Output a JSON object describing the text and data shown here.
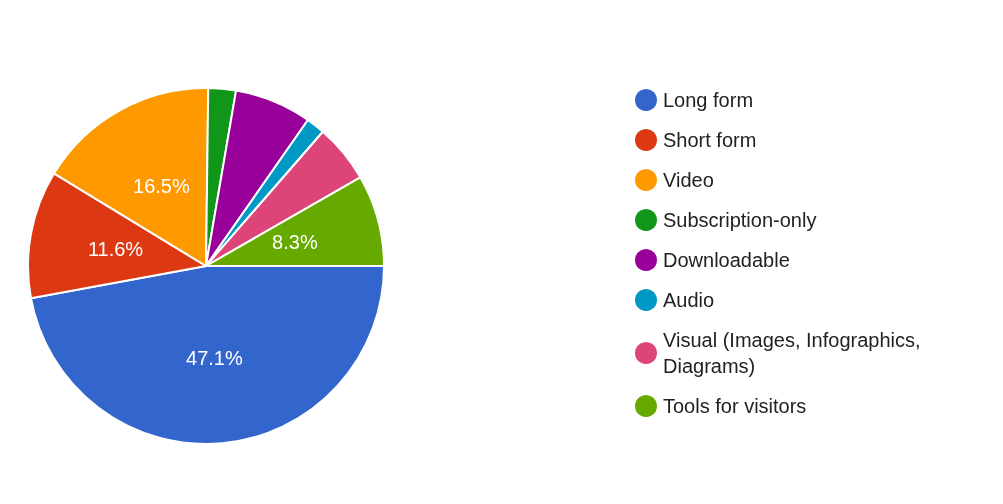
{
  "chart_data": {
    "type": "pie",
    "categories": [
      "Long form",
      "Short form",
      "Video",
      "Subscription-only",
      "Downloadable",
      "Audio",
      "Visual (Images, Infographics, Diagrams)",
      "Tools for visitors"
    ],
    "values": [
      47.1,
      11.6,
      16.5,
      2.5,
      7.0,
      1.7,
      5.3,
      8.3
    ],
    "colors": [
      "#3366cc",
      "#dc3912",
      "#ff9900",
      "#109618",
      "#990099",
      "#0099c6",
      "#dd4477",
      "#66aa00"
    ],
    "value_labels": [
      "47.1%",
      "11.6%",
      "16.5%",
      null,
      null,
      null,
      null,
      "8.3%"
    ],
    "legend": "right"
  }
}
